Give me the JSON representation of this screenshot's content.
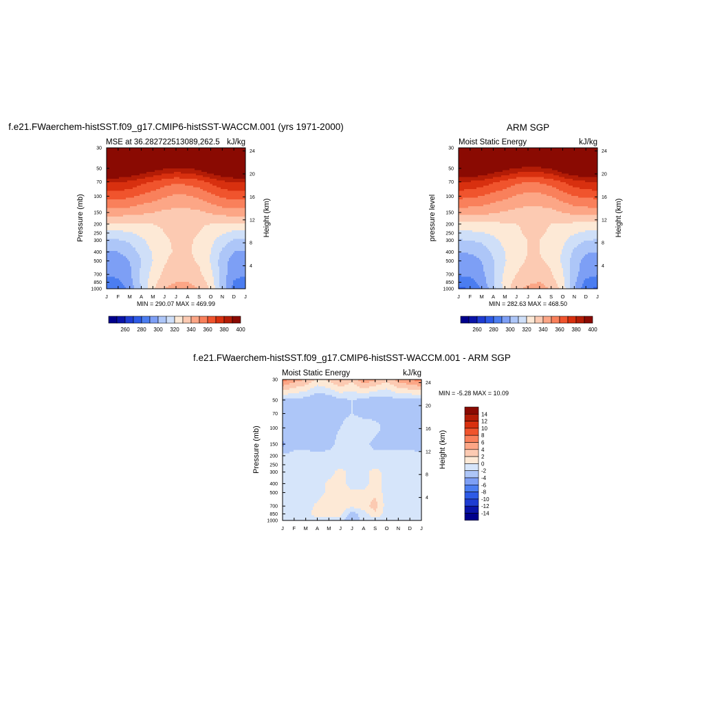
{
  "colors": {
    "mse_levels": [
      "#00008c",
      "#0a14a8",
      "#1e3cd2",
      "#2d5ae6",
      "#4b7df0",
      "#7d9ff5",
      "#adc6f8",
      "#cfdff8",
      "#fde9d6",
      "#fccab2",
      "#fca686",
      "#f9805b",
      "#f0542d",
      "#d8300f",
      "#b31c06",
      "#8a0a02"
    ],
    "diff_levels": [
      "#00008c",
      "#0a14a8",
      "#1e3cd2",
      "#2d5ae6",
      "#4b7df0",
      "#7d9ff5",
      "#adc6f8",
      "#d6e5fa",
      "#fde9d6",
      "#fccab2",
      "#fca686",
      "#f9805b",
      "#f0542d",
      "#d8300f",
      "#b31c06",
      "#8a0a02"
    ]
  },
  "months": [
    "J",
    "F",
    "M",
    "A",
    "M",
    "J",
    "J",
    "A",
    "S",
    "O",
    "N",
    "D",
    "J"
  ],
  "pressure_ticks": [
    "30",
    "50",
    "70",
    "100",
    "150",
    "200",
    "250",
    "300",
    "400",
    "500",
    "700",
    "850",
    "1000"
  ],
  "height_ticks": [
    "24",
    "20",
    "16",
    "12",
    "8",
    "4"
  ],
  "panels": {
    "model": {
      "title": "f.e21.FWaerchem-histSST.f09_g17.CMIP6-histSST-WACCM.001 (yrs 1971-2000)",
      "left_label": "MSE at 36.282722513089,262.5",
      "right_label": "kJ/kg",
      "ylabel": "Pressure (mb)",
      "ylabel_right": "Height (km)",
      "minmax": "MIN = 290.07 MAX = 469.99",
      "colorbar_labels": [
        "260",
        "280",
        "300",
        "320",
        "340",
        "360",
        "380",
        "400"
      ]
    },
    "obs": {
      "title": "ARM SGP",
      "left_label": "Moist Static Energy",
      "right_label": "kJ/kg",
      "ylabel": "pressure level",
      "ylabel_right": "Height (km)",
      "minmax": "MIN = 282.63 MAX = 468.50",
      "colorbar_labels": [
        "260",
        "280",
        "300",
        "320",
        "340",
        "360",
        "380",
        "400"
      ]
    },
    "diff": {
      "title": "f.e21.FWaerchem-histSST.f09_g17.CMIP6-histSST-WACCM.001 - ARM SGP",
      "left_label": "Moist Static Energy",
      "right_label": "kJ/kg",
      "ylabel": "Pressure (mb)",
      "ylabel_right": "Height (km)",
      "minmax": "MIN =  -5.28 MAX =  10.09",
      "colorbar_labels": [
        "14",
        "12",
        "10",
        "8",
        "6",
        "4",
        "2",
        "0",
        "-2",
        "-4",
        "-6",
        "-8",
        "-10",
        "-12",
        "-14"
      ]
    }
  },
  "chart_data": [
    {
      "type": "heatmap",
      "title": "f.e21.FWaerchem-histSST.f09_g17.CMIP6-histSST-WACCM.001 (yrs 1971-2000)",
      "subtitle": "MSE at 36.282722513089,262.5",
      "units": "kJ/kg",
      "x": [
        "J",
        "F",
        "M",
        "A",
        "M",
        "J",
        "J",
        "A",
        "S",
        "O",
        "N",
        "D",
        "J"
      ],
      "ylabel": "Pressure (mb)",
      "y_pressure": [
        30,
        50,
        70,
        100,
        150,
        200,
        250,
        300,
        400,
        500,
        700,
        850,
        1000
      ],
      "values": [
        [
          466,
          466,
          465,
          464,
          463,
          463,
          462,
          462,
          463,
          464,
          465,
          466,
          466
        ],
        [
          424,
          423,
          419,
          412,
          406,
          401,
          398,
          399,
          404,
          412,
          419,
          423,
          424
        ],
        [
          391,
          391,
          388,
          383,
          379,
          374,
          372,
          373,
          376,
          382,
          388,
          391,
          391
        ],
        [
          374,
          374,
          372,
          368,
          365,
          361,
          358,
          359,
          362,
          367,
          372,
          374,
          374
        ],
        [
          355,
          355,
          354,
          352,
          350,
          348,
          347,
          347,
          348,
          351,
          354,
          355,
          355
        ],
        [
          338,
          338,
          338,
          339,
          340,
          341,
          342,
          342,
          341,
          340,
          339,
          338,
          338
        ],
        [
          326,
          327,
          329,
          333,
          337,
          340,
          342,
          342,
          340,
          336,
          331,
          327,
          326
        ],
        [
          318,
          319,
          322,
          328,
          334,
          339,
          341,
          341,
          339,
          333,
          325,
          319,
          318
        ],
        [
          309,
          310,
          314,
          323,
          331,
          338,
          341,
          341,
          338,
          330,
          318,
          310,
          309
        ],
        [
          304,
          305,
          310,
          320,
          330,
          339,
          343,
          342,
          339,
          329,
          315,
          305,
          304
        ],
        [
          301,
          302,
          308,
          322,
          334,
          342,
          346,
          346,
          342,
          333,
          315,
          303,
          301
        ],
        [
          296,
          298,
          306,
          322,
          336,
          346,
          350,
          350,
          346,
          336,
          315,
          299,
          296
        ],
        [
          291,
          293,
          303,
          320,
          338,
          350,
          355,
          355,
          350,
          338,
          316,
          296,
          291
        ]
      ],
      "levels": [
        260,
        270,
        280,
        290,
        300,
        310,
        320,
        330,
        340,
        350,
        360,
        370,
        380,
        390,
        400
      ],
      "min": 290.07,
      "max": 469.99
    },
    {
      "type": "heatmap",
      "title": "ARM SGP",
      "subtitle": "Moist Static Energy",
      "units": "kJ/kg",
      "x": [
        "J",
        "F",
        "M",
        "A",
        "M",
        "J",
        "J",
        "A",
        "S",
        "O",
        "N",
        "D",
        "J"
      ],
      "ylabel": "pressure level",
      "y_pressure": [
        30,
        50,
        70,
        100,
        150,
        200,
        250,
        300,
        400,
        500,
        700,
        850,
        1000
      ],
      "values": [
        [
          463,
          463,
          462,
          461,
          460,
          460,
          459,
          459,
          460,
          461,
          462,
          463,
          463
        ],
        [
          421,
          420,
          417,
          410,
          404,
          399,
          396,
          397,
          401,
          410,
          417,
          420,
          421
        ],
        [
          390,
          389,
          386,
          381,
          377,
          372,
          370,
          371,
          374,
          380,
          386,
          389,
          390
        ],
        [
          373,
          372,
          370,
          366,
          363,
          359,
          356,
          357,
          360,
          365,
          370,
          372,
          373
        ],
        [
          354,
          354,
          353,
          351,
          349,
          347,
          346,
          346,
          347,
          350,
          353,
          354,
          354
        ],
        [
          337,
          337,
          337,
          338,
          339,
          340,
          341,
          341,
          340,
          339,
          338,
          337,
          337
        ],
        [
          327,
          328,
          329,
          332,
          336,
          339,
          341,
          341,
          339,
          335,
          331,
          328,
          327
        ],
        [
          319,
          320,
          322,
          327,
          333,
          338,
          340,
          340,
          338,
          332,
          325,
          320,
          319
        ],
        [
          310,
          311,
          314,
          322,
          330,
          337,
          340,
          340,
          337,
          329,
          318,
          311,
          310
        ],
        [
          305,
          306,
          310,
          319,
          329,
          337,
          341,
          341,
          338,
          328,
          315,
          306,
          305
        ],
        [
          301,
          302,
          307,
          319,
          332,
          340,
          345,
          345,
          341,
          331,
          314,
          303,
          301
        ],
        [
          294,
          296,
          304,
          319,
          334,
          344,
          348,
          350,
          345,
          334,
          312,
          297,
          294
        ],
        [
          288,
          290,
          300,
          317,
          334,
          347,
          353,
          355,
          349,
          335,
          312,
          292,
          288
        ]
      ],
      "levels": [
        260,
        270,
        280,
        290,
        300,
        310,
        320,
        330,
        340,
        350,
        360,
        370,
        380,
        390,
        400
      ],
      "min": 282.63,
      "max": 468.5
    },
    {
      "type": "heatmap",
      "title": "f.e21.FWaerchem-histSST.f09_g17.CMIP6-histSST-WACCM.001 - ARM SGP",
      "subtitle": "Moist Static Energy",
      "units": "kJ/kg",
      "x": [
        "J",
        "F",
        "M",
        "A",
        "M",
        "J",
        "J",
        "A",
        "S",
        "O",
        "N",
        "D",
        "J"
      ],
      "ylabel": "Pressure (mb)",
      "y_pressure": [
        30,
        50,
        70,
        100,
        150,
        200,
        250,
        300,
        400,
        500,
        700,
        850,
        1000
      ],
      "values": [
        [
          7.0,
          5.0,
          4.0,
          1.5,
          2.5,
          4.5,
          2.5,
          5.5,
          4.5,
          2.5,
          5.0,
          6.0,
          7.0
        ],
        [
          -2.5,
          -2.5,
          -3.0,
          -4.0,
          -3.5,
          -2.5,
          -2.0,
          -2.5,
          -3.5,
          -3.0,
          -2.5,
          -2.5,
          -2.5
        ],
        [
          -2.5,
          -2.5,
          -2.5,
          -2.5,
          -3.5,
          -2.5,
          -2.0,
          -2.5,
          -2.5,
          -2.5,
          -2.5,
          -2.5,
          -2.5
        ],
        [
          -2.5,
          -2.5,
          -2.5,
          -2.5,
          -2.5,
          -2.0,
          -1.0,
          -1.0,
          -1.5,
          -2.5,
          -2.5,
          -2.5,
          -2.5
        ],
        [
          -4.5,
          -2.5,
          -2.5,
          -3.0,
          -2.5,
          -1.5,
          -1.0,
          -1.5,
          -2.5,
          -2.5,
          -2.5,
          -2.5,
          -3.0
        ],
        [
          -1.5,
          -1.5,
          -1.5,
          -1.5,
          -1.5,
          -1.5,
          -1.5,
          -1.5,
          -1.5,
          -1.5,
          -1.5,
          -1.5,
          -1.5
        ],
        [
          -1.0,
          -1.0,
          -1.0,
          -1.0,
          -1.0,
          -1.0,
          -1.0,
          -1.0,
          -1.0,
          -1.0,
          -1.0,
          -1.0,
          -1.0
        ],
        [
          -1.0,
          -1.0,
          -1.0,
          -1.0,
          -1.0,
          1.0,
          -1.0,
          -1.0,
          1.0,
          -1.0,
          -1.0,
          -1.0,
          -1.0
        ],
        [
          -1.0,
          -1.0,
          -1.0,
          -1.0,
          0.5,
          1.0,
          -1.0,
          -1.0,
          1.0,
          -1.0,
          -1.0,
          -1.0,
          -1.0
        ],
        [
          -1.0,
          -1.0,
          -1.0,
          -1.0,
          0.5,
          1.0,
          0.5,
          0.5,
          1.5,
          -1.0,
          -1.0,
          -1.0,
          -1.0
        ],
        [
          -1.0,
          -1.0,
          -1.0,
          0.5,
          1.5,
          1.0,
          0.5,
          1.0,
          3.0,
          -1.0,
          -1.0,
          -1.0,
          -1.0
        ],
        [
          -1.5,
          -1.5,
          -1.0,
          1.0,
          1.0,
          0.5,
          -3.0,
          -1.0,
          1.5,
          -1.0,
          -1.0,
          -1.0,
          -1.5
        ],
        [
          -1.0,
          -1.0,
          -1.0,
          -1.0,
          -1.0,
          -1.0,
          -4.0,
          -1.0,
          -1.0,
          -1.0,
          -1.0,
          -1.0,
          -1.0
        ]
      ],
      "levels": [
        -14,
        -12,
        -10,
        -8,
        -6,
        -4,
        -2,
        0,
        2,
        4,
        6,
        8,
        10,
        12,
        14
      ],
      "min": -5.28,
      "max": 10.09
    }
  ]
}
